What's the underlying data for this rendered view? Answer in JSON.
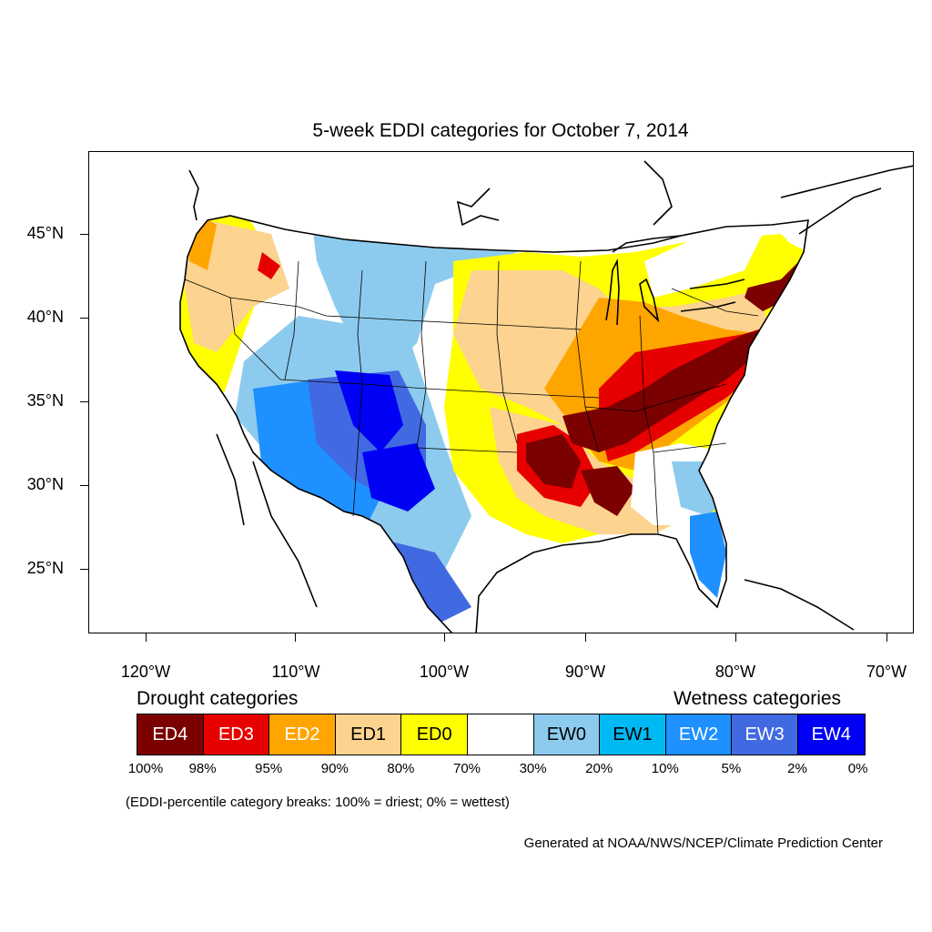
{
  "title": "5-week EDDI categories for October 7, 2014",
  "map": {
    "y_axis_labels": [
      "45°N",
      "40°N",
      "35°N",
      "30°N",
      "25°N"
    ],
    "x_axis_labels": [
      "120°W",
      "110°W",
      "100°W",
      "90°W",
      "80°W",
      "70°W"
    ]
  },
  "legend": {
    "drought_heading": "Drought categories",
    "wetness_heading": "Wetness categories",
    "categories": [
      {
        "label": "ED4",
        "color": "#7b0000",
        "text_color": "#ffffff"
      },
      {
        "label": "ED3",
        "color": "#e60000",
        "text_color": "#ffffff"
      },
      {
        "label": "ED2",
        "color": "#ffa500",
        "text_color": "#ffffff"
      },
      {
        "label": "ED1",
        "color": "#fcd38f",
        "text_color": "#000000"
      },
      {
        "label": "ED0",
        "color": "#ffff00",
        "text_color": "#000000"
      },
      {
        "label": "",
        "color": "#ffffff",
        "text_color": "#000000"
      },
      {
        "label": "EW0",
        "color": "#8dcbee",
        "text_color": "#000000"
      },
      {
        "label": "EW1",
        "color": "#00b9f2",
        "text_color": "#000000"
      },
      {
        "label": "EW2",
        "color": "#1e90ff",
        "text_color": "#ffffff"
      },
      {
        "label": "EW3",
        "color": "#4169e1",
        "text_color": "#ffffff"
      },
      {
        "label": "EW4",
        "color": "#0000f5",
        "text_color": "#ffffff"
      }
    ],
    "breaks": [
      "100%",
      "98%",
      "95%",
      "90%",
      "80%",
      "70%",
      "30%",
      "20%",
      "10%",
      "5%",
      "2%",
      "0%"
    ]
  },
  "note": "(EDDI-percentile category breaks: 100% = driest; 0% = wettest)",
  "credit": "Generated at NOAA/NWS/NCEP/Climate Prediction Center"
}
